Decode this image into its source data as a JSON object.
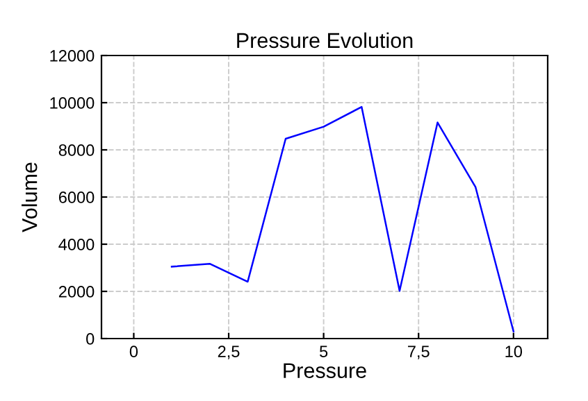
{
  "chart_data": {
    "type": "line",
    "title": "Pressure Evolution",
    "xlabel": "Pressure",
    "ylabel": "Volume",
    "x": [
      1,
      2,
      3,
      4,
      5,
      6,
      7,
      8,
      9,
      10
    ],
    "series": [
      {
        "color": "#0000ff",
        "values": [
          3050,
          3170,
          2410,
          8470,
          8980,
          9820,
          2020,
          9160,
          6420,
          300
        ]
      }
    ],
    "xlim": [
      -0.85,
      10.9
    ],
    "xticks": [
      0,
      {
        "value": 2.5,
        "label": "2,5"
      },
      5,
      {
        "value": 7.5,
        "label": "7,5"
      },
      10
    ],
    "ylim": [
      0,
      12000
    ],
    "yticks": [
      0,
      2000,
      4000,
      6000,
      8000,
      10000,
      12000
    ],
    "grid": true,
    "line_style": "solid",
    "marker": "none"
  }
}
